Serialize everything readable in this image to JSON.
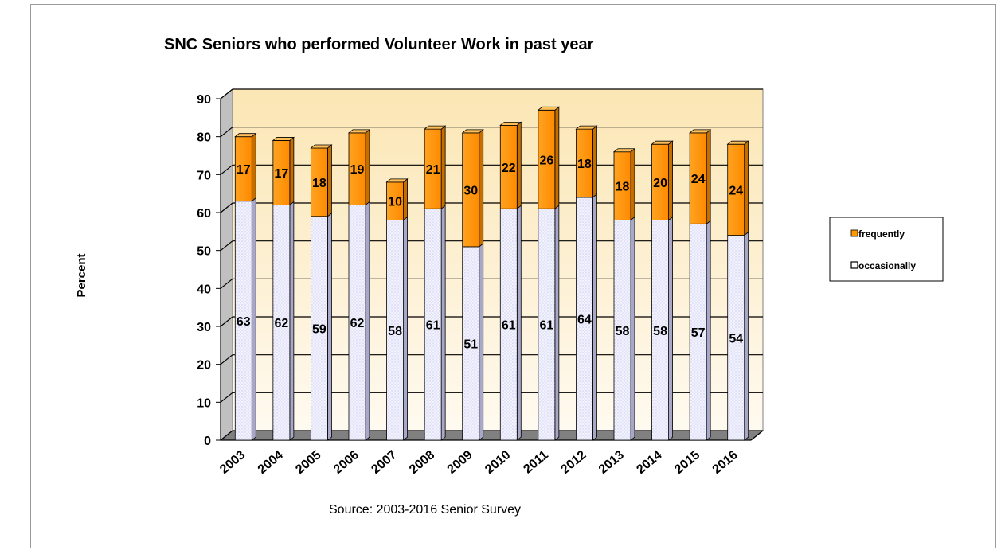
{
  "chart_data": {
    "type": "bar",
    "stacked": true,
    "title": "SNC Seniors who performed Volunteer Work in past year",
    "ylabel": "Percent",
    "xlabel": "",
    "source": "Source: 2003-2016 Senior Survey",
    "ylim": [
      0,
      90
    ],
    "yticks": [
      0,
      10,
      20,
      30,
      40,
      50,
      60,
      70,
      80,
      90
    ],
    "grid": true,
    "legend_position": "right",
    "categories": [
      "2003",
      "2004",
      "2005",
      "2006",
      "2007",
      "2008",
      "2009",
      "2010",
      "2011",
      "2012",
      "2013",
      "2014",
      "2015",
      "2016"
    ],
    "series": [
      {
        "name": "occasionally",
        "color": "#eeeeff",
        "values": [
          63,
          62,
          59,
          62,
          58,
          61,
          51,
          61,
          61,
          64,
          58,
          58,
          57,
          54
        ]
      },
      {
        "name": "frequently",
        "color": "#ff9900",
        "values": [
          17,
          17,
          18,
          19,
          10,
          21,
          30,
          22,
          26,
          18,
          18,
          20,
          24,
          24
        ]
      }
    ],
    "colors": {
      "wall": "#fff5d6",
      "floor": "#808080",
      "grid": "#000000"
    }
  }
}
